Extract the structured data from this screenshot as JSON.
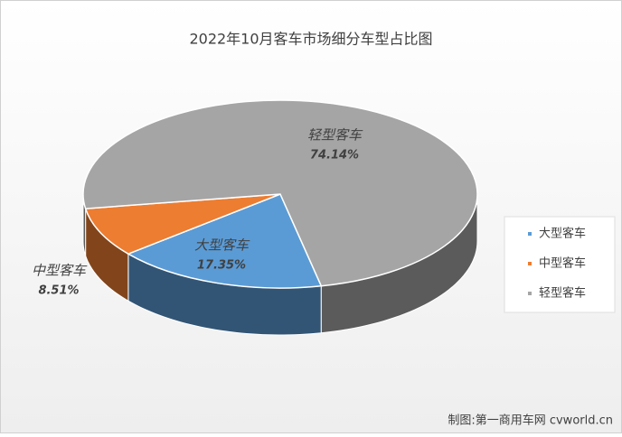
{
  "chart_data": {
    "type": "pie3d",
    "title": "2022年10月客车市场细分车型占比图",
    "categories": [
      "大型客车",
      "中型客车",
      "轻型客车"
    ],
    "values": [
      17.35,
      8.51,
      74.14
    ],
    "value_labels": [
      "17.35%",
      "8.51%",
      "74.14%"
    ],
    "colors": [
      "#5b9bd5",
      "#ed7d31",
      "#a5a5a5"
    ],
    "legend": "right",
    "source": "制图:第一商用车网 cvworld.cn"
  }
}
